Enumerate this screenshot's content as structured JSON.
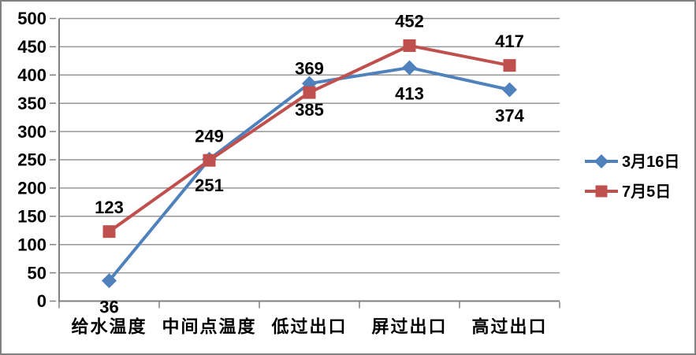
{
  "chart_data": {
    "type": "line",
    "title": "",
    "categories": [
      "给水温度",
      "中间点温度",
      "低过出口",
      "屏过出口",
      "高过出口"
    ],
    "series": [
      {
        "name": "3月16日",
        "color": "#4F81BD",
        "marker": "diamond",
        "label_position": "below",
        "values": [
          36,
          251,
          385,
          413,
          374
        ]
      },
      {
        "name": "7月5日",
        "color": "#C0504D",
        "marker": "square",
        "label_position": "above",
        "values": [
          123,
          249,
          369,
          452,
          417
        ]
      }
    ],
    "y_ticks": [
      0,
      50,
      100,
      150,
      200,
      250,
      300,
      350,
      400,
      450,
      500
    ],
    "ylim": [
      0,
      500
    ],
    "xlabel": "",
    "ylabel": "",
    "grid": "horizontal",
    "legend_position": "right",
    "colors": {
      "grid": "#969696",
      "axis": "#808080",
      "text": "#000000",
      "frame_border": "#808080",
      "background": "#FFFFFF"
    }
  }
}
